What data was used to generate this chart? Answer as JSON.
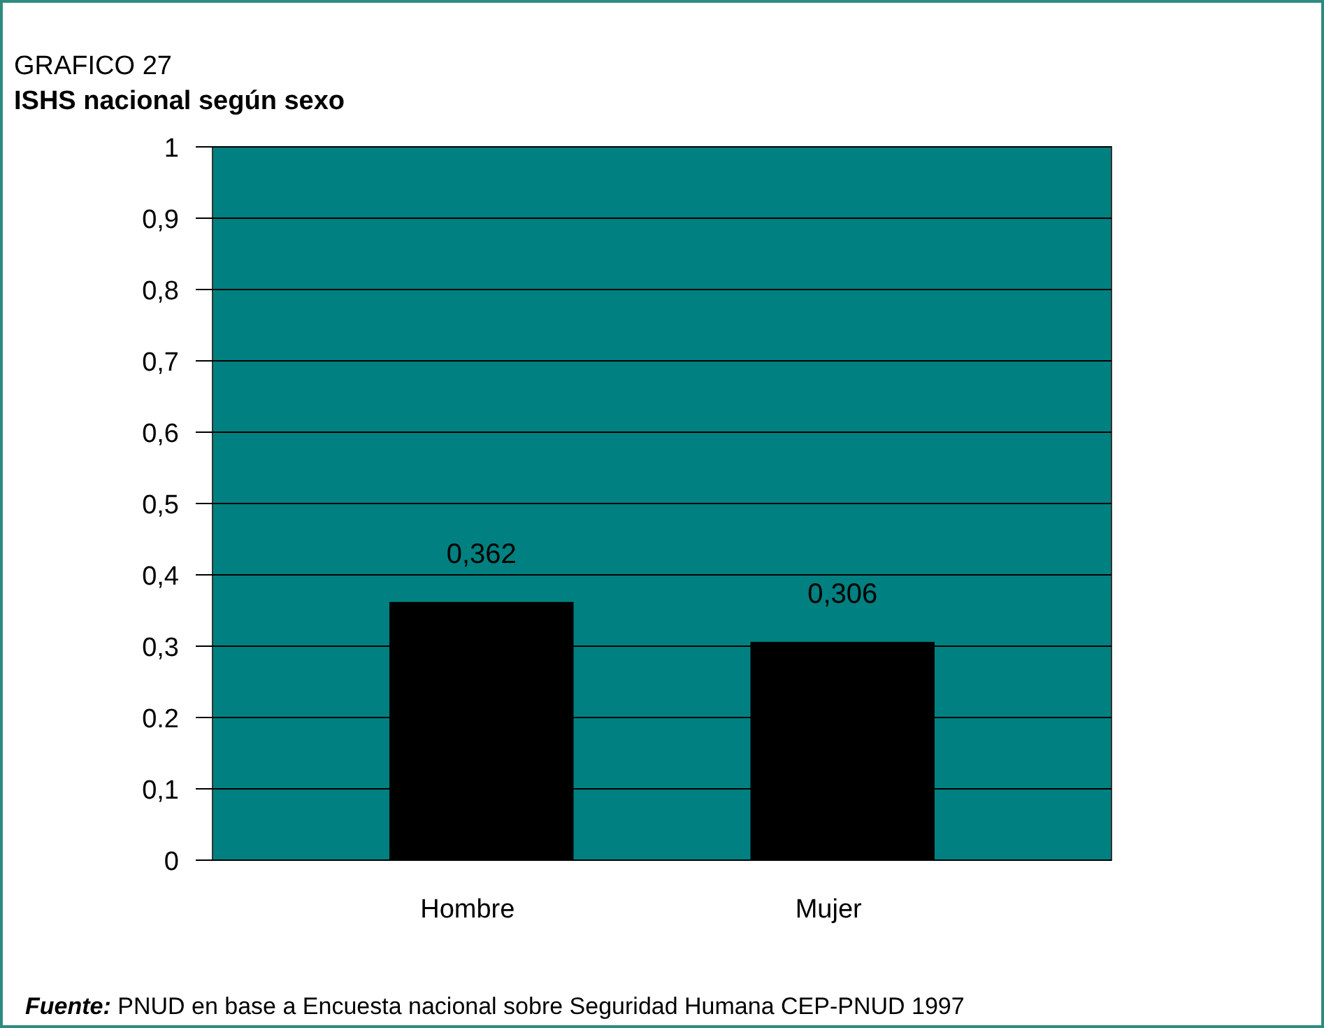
{
  "chart_data": {
    "type": "bar",
    "title": "GRAFICO 27",
    "subtitle": "ISHS  nacional según sexo",
    "categories": [
      "Hombre",
      "Mujer"
    ],
    "values": [
      0.362,
      0.306
    ],
    "value_labels": [
      "0,362",
      "0,306"
    ],
    "color": "#000000",
    "ylim": [
      0,
      1
    ],
    "yticks": [
      0,
      {
        "value": 0.1,
        "label": "0,1"
      },
      {
        "value": 0.2,
        "label": "0.2"
      },
      {
        "value": 0.3,
        "label": "0,3"
      },
      {
        "value": 0.4,
        "label": "0,4"
      },
      {
        "value": 0.5,
        "label": "0,5"
      },
      {
        "value": 0.6,
        "label": "0,6"
      },
      {
        "value": 0.7,
        "label": "0,7"
      },
      {
        "value": 0.8,
        "label": "0,8"
      },
      {
        "value": 0.9,
        "label": "0,9"
      },
      1
    ],
    "grid": "y",
    "annotations": [
      "Fuente: PNUD en base a Encuesta nacional sobre Seguridad Humana CEP-PNUD 1997"
    ]
  }
}
